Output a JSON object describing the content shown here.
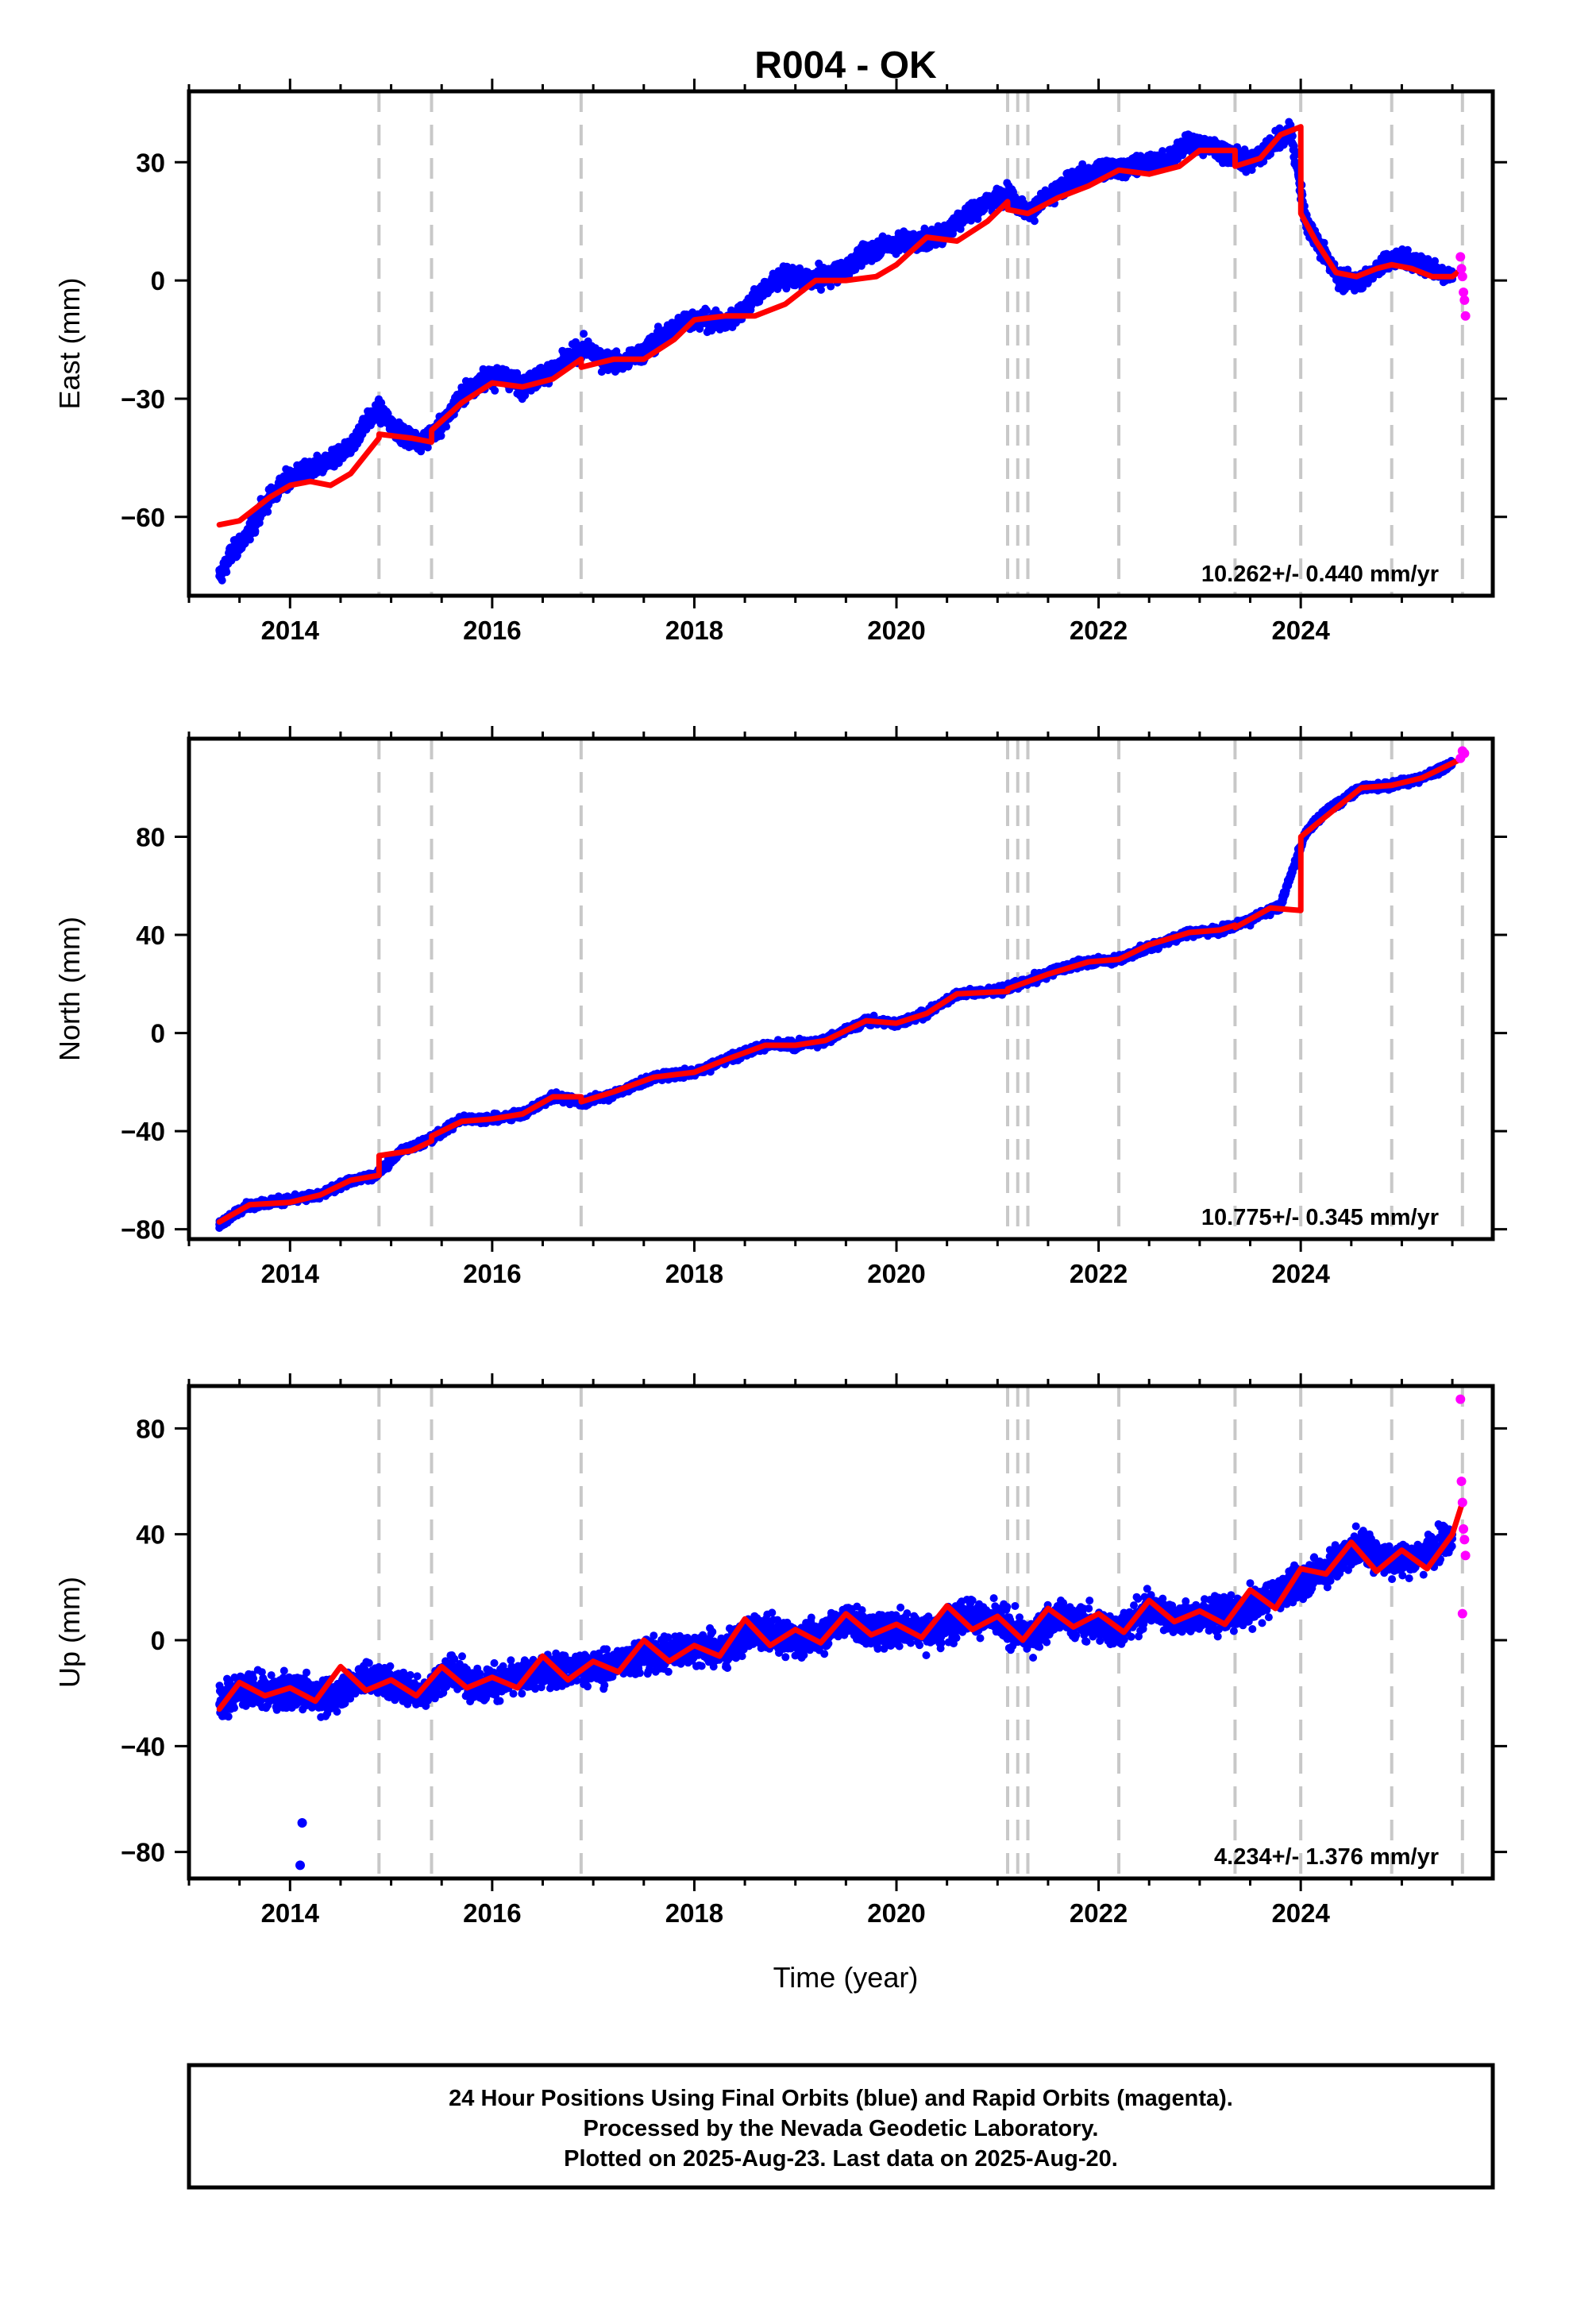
{
  "title": "R004 - OK",
  "x_axis_label": "Time (year)",
  "colors": {
    "final_orbits": "#0000ff",
    "rapid_orbits": "#ff00ff",
    "model": "#ff0000",
    "event_lines": "#c8c8c8"
  },
  "footer": {
    "line1": "24 Hour Positions Using Final Orbits (blue) and Rapid Orbits (magenta).",
    "line2": "Processed by the Nevada Geodetic Laboratory.",
    "line3": "Plotted on 2025-Aug-23. Last data on 2025-Aug-20."
  },
  "chart_data": [
    {
      "type": "scatter",
      "component": "east",
      "ylabel": "East (mm)",
      "rate_label": "10.262+/- 0.440 mm/yr",
      "xlim": [
        2013.0,
        2025.9
      ],
      "ylim": [
        -80,
        48
      ],
      "yticks": [
        -60,
        -30,
        0,
        30
      ],
      "xticks": [
        2014,
        2016,
        2018,
        2020,
        2022,
        2024
      ],
      "grid": false,
      "event_lines": [
        2014.88,
        2015.4,
        2016.88,
        2021.1,
        2021.2,
        2021.3,
        2022.2,
        2023.35,
        2024.0,
        2024.9,
        2025.6
      ],
      "model": {
        "x": [
          2013.3,
          2013.5,
          2013.8,
          2014.0,
          2014.2,
          2014.4,
          2014.6,
          2014.88,
          2014.881,
          2015.2,
          2015.4,
          2015.401,
          2015.7,
          2016.0,
          2016.3,
          2016.6,
          2016.88,
          2016.881,
          2017.2,
          2017.5,
          2017.8,
          2018.0,
          2018.3,
          2018.6,
          2018.9,
          2019.2,
          2019.5,
          2019.8,
          2020.0,
          2020.3,
          2020.6,
          2020.9,
          2021.1,
          2021.101,
          2021.3,
          2021.6,
          2021.9,
          2022.2,
          2022.5,
          2022.8,
          2023.0,
          2023.35,
          2023.351,
          2023.6,
          2023.8,
          2024.0,
          2024.001,
          2024.15,
          2024.35,
          2024.55,
          2024.75,
          2024.9,
          2025.1,
          2025.3,
          2025.5,
          2025.6
        ],
        "y": [
          -62,
          -61,
          -55,
          -52,
          -51,
          -52,
          -49,
          -40,
          -39,
          -40,
          -41,
          -38,
          -31,
          -26,
          -27,
          -25,
          -20,
          -22,
          -20,
          -20,
          -15,
          -10,
          -9,
          -9,
          -6,
          0,
          0,
          1,
          4,
          11,
          10,
          15,
          20,
          18,
          17,
          21,
          24,
          28,
          27,
          29,
          33,
          33,
          29,
          31,
          37,
          39,
          17,
          10,
          2,
          1,
          3,
          4,
          3,
          1,
          1,
          3
        ]
      },
      "final_orbits": {
        "x": [
          2013.3,
          2013.35,
          2013.4,
          2013.5,
          2013.6,
          2013.7,
          2013.8,
          2014.0,
          2014.2,
          2014.4,
          2014.6,
          2014.75,
          2014.88,
          2015.1,
          2015.3,
          2015.5,
          2015.7,
          2015.9,
          2016.1,
          2016.3,
          2016.5,
          2016.7,
          2016.9,
          2017.1,
          2017.3,
          2017.5,
          2017.7,
          2017.9,
          2018.1,
          2018.3,
          2018.5,
          2018.7,
          2018.9,
          2019.1,
          2019.3,
          2019.5,
          2019.7,
          2019.9,
          2020.1,
          2020.3,
          2020.5,
          2020.7,
          2020.9,
          2021.1,
          2021.3,
          2021.5,
          2021.7,
          2021.9,
          2022.1,
          2022.3,
          2022.5,
          2022.7,
          2022.9,
          2023.1,
          2023.3,
          2023.5,
          2023.7,
          2023.9,
          2024.05,
          2024.2,
          2024.4,
          2024.6,
          2024.8,
          2025.0,
          2025.2,
          2025.4,
          2025.5
        ],
        "y": [
          -75,
          -73,
          -70,
          -67,
          -64,
          -59,
          -55,
          -50,
          -48,
          -46,
          -42,
          -36,
          -33,
          -39,
          -41,
          -37,
          -29,
          -25,
          -24,
          -27,
          -24,
          -21,
          -17,
          -20,
          -21,
          -18,
          -14,
          -10,
          -10,
          -11,
          -7,
          -2,
          1,
          0,
          1,
          3,
          7,
          9,
          10,
          10,
          13,
          17,
          20,
          22,
          17,
          21,
          25,
          27,
          28,
          29,
          30,
          31,
          35,
          34,
          32,
          30,
          34,
          38,
          15,
          8,
          0,
          0,
          4,
          6,
          4,
          2,
          1
        ]
      },
      "rapid_orbits": {
        "x": [
          2025.58,
          2025.59,
          2025.6,
          2025.61,
          2025.62,
          2025.63
        ],
        "y": [
          6,
          3,
          1,
          -3,
          -5,
          -9
        ]
      }
    },
    {
      "type": "scatter",
      "component": "north",
      "ylabel": "North (mm)",
      "rate_label": "10.775+/- 0.345 mm/yr",
      "xlim": [
        2013.0,
        2025.9
      ],
      "ylim": [
        -84,
        120
      ],
      "yticks": [
        -80,
        -40,
        0,
        40,
        80
      ],
      "xticks": [
        2014,
        2016,
        2018,
        2020,
        2022,
        2024
      ],
      "grid": false,
      "event_lines": [
        2014.88,
        2015.4,
        2016.88,
        2021.1,
        2021.2,
        2021.3,
        2022.2,
        2023.35,
        2024.0,
        2024.9,
        2025.6
      ],
      "model": {
        "x": [
          2013.3,
          2013.6,
          2014.0,
          2014.3,
          2014.6,
          2014.88,
          2014.881,
          2015.2,
          2015.4,
          2015.401,
          2015.7,
          2016.0,
          2016.3,
          2016.6,
          2016.88,
          2016.881,
          2017.2,
          2017.6,
          2018.0,
          2018.3,
          2018.7,
          2019.0,
          2019.3,
          2019.7,
          2020.0,
          2020.3,
          2020.6,
          2021.1,
          2021.101,
          2021.5,
          2021.9,
          2022.2,
          2022.5,
          2022.9,
          2023.2,
          2023.35,
          2023.351,
          2023.7,
          2024.0,
          2024.001,
          2024.3,
          2024.6,
          2024.9,
          2025.2,
          2025.6
        ],
        "y": [
          -77,
          -70,
          -69,
          -66,
          -60,
          -58,
          -50,
          -48,
          -44,
          -42,
          -36,
          -35,
          -33,
          -26,
          -26,
          -28,
          -24,
          -18,
          -16,
          -11,
          -5,
          -5,
          -3,
          5,
          4,
          8,
          16,
          17,
          18,
          24,
          29,
          30,
          36,
          41,
          42,
          44,
          43,
          51,
          50,
          80,
          90,
          100,
          101,
          104,
          112
        ]
      },
      "final_orbits": {
        "x": [
          2013.3,
          2013.6,
          2014.0,
          2014.3,
          2014.6,
          2014.85,
          2015.1,
          2015.4,
          2015.7,
          2016.0,
          2016.3,
          2016.6,
          2016.9,
          2017.2,
          2017.6,
          2018.0,
          2018.3,
          2018.7,
          2019.0,
          2019.3,
          2019.7,
          2020.0,
          2020.3,
          2020.6,
          2021.0,
          2021.3,
          2021.6,
          2021.9,
          2022.2,
          2022.5,
          2022.9,
          2023.2,
          2023.5,
          2023.8,
          2024.05,
          2024.3,
          2024.6,
          2024.9,
          2025.2,
          2025.5
        ],
        "y": [
          -78,
          -70,
          -68,
          -66,
          -60,
          -58,
          -48,
          -43,
          -35,
          -35,
          -33,
          -26,
          -28,
          -25,
          -18,
          -16,
          -11,
          -5,
          -5,
          -3,
          5,
          4,
          8,
          16,
          17,
          21,
          26,
          29,
          30,
          35,
          41,
          42,
          46,
          52,
          82,
          92,
          100,
          101,
          104,
          110
        ]
      },
      "rapid_orbits": {
        "x": [
          2025.58,
          2025.6,
          2025.62
        ],
        "y": [
          112,
          115,
          114
        ]
      }
    },
    {
      "type": "scatter",
      "component": "up",
      "ylabel": "Up (mm)",
      "rate_label": "4.234+/- 1.376 mm/yr",
      "xlim": [
        2013.0,
        2025.9
      ],
      "ylim": [
        -90,
        96
      ],
      "yticks": [
        -80,
        -40,
        0,
        40,
        80
      ],
      "xticks": [
        2014,
        2016,
        2018,
        2020,
        2022,
        2024
      ],
      "grid": false,
      "event_lines": [
        2014.88,
        2015.4,
        2016.88,
        2021.1,
        2021.2,
        2021.3,
        2022.2,
        2023.35,
        2024.0,
        2024.9,
        2025.6
      ],
      "model": {
        "x": [
          2013.3,
          2013.5,
          2013.75,
          2014.0,
          2014.25,
          2014.5,
          2014.75,
          2015.0,
          2015.25,
          2015.5,
          2015.75,
          2016.0,
          2016.25,
          2016.5,
          2016.75,
          2017.0,
          2017.25,
          2017.5,
          2017.75,
          2018.0,
          2018.25,
          2018.5,
          2018.75,
          2019.0,
          2019.25,
          2019.5,
          2019.75,
          2020.0,
          2020.25,
          2020.5,
          2020.75,
          2021.0,
          2021.25,
          2021.5,
          2021.75,
          2022.0,
          2022.25,
          2022.5,
          2022.75,
          2023.0,
          2023.25,
          2023.5,
          2023.75,
          2024.0,
          2024.25,
          2024.5,
          2024.75,
          2025.0,
          2025.25,
          2025.5,
          2025.6
        ],
        "y": [
          -26,
          -16,
          -21,
          -18,
          -23,
          -10,
          -19,
          -15,
          -21,
          -10,
          -18,
          -14,
          -18,
          -6,
          -15,
          -8,
          -12,
          0,
          -8,
          -2,
          -6,
          8,
          -2,
          4,
          -1,
          10,
          2,
          6,
          1,
          13,
          4,
          9,
          0,
          12,
          5,
          10,
          3,
          15,
          7,
          11,
          6,
          19,
          12,
          27,
          25,
          37,
          26,
          34,
          27,
          40,
          52
        ]
      },
      "final_orbits": {
        "x": [
          2013.3,
          2013.5,
          2013.8,
          2014.1,
          2014.4,
          2014.7,
          2015.0,
          2015.3,
          2015.6,
          2015.9,
          2016.2,
          2016.5,
          2016.8,
          2017.1,
          2017.4,
          2017.7,
          2018.0,
          2018.3,
          2018.6,
          2018.9,
          2019.2,
          2019.5,
          2019.8,
          2020.1,
          2020.4,
          2020.7,
          2021.0,
          2021.3,
          2021.6,
          2021.9,
          2022.2,
          2022.5,
          2022.8,
          2023.1,
          2023.4,
          2023.7,
          2024.0,
          2024.3,
          2024.6,
          2024.9,
          2025.2,
          2025.5
        ],
        "y": [
          -24,
          -18,
          -20,
          -19,
          -22,
          -14,
          -16,
          -20,
          -12,
          -17,
          -15,
          -12,
          -10,
          -11,
          -6,
          -5,
          -3,
          -4,
          4,
          1,
          1,
          8,
          3,
          5,
          3,
          10,
          7,
          1,
          9,
          6,
          4,
          12,
          8,
          9,
          10,
          16,
          22,
          28,
          36,
          30,
          32,
          40
        ]
      },
      "outliers": {
        "x": [
          2014.12,
          2014.1
        ],
        "y": [
          -69,
          -85
        ]
      },
      "rapid_orbits": {
        "x": [
          2025.58,
          2025.59,
          2025.6,
          2025.61,
          2025.62,
          2025.63,
          2025.6
        ],
        "y": [
          91,
          60,
          52,
          42,
          38,
          32,
          10
        ]
      }
    }
  ]
}
